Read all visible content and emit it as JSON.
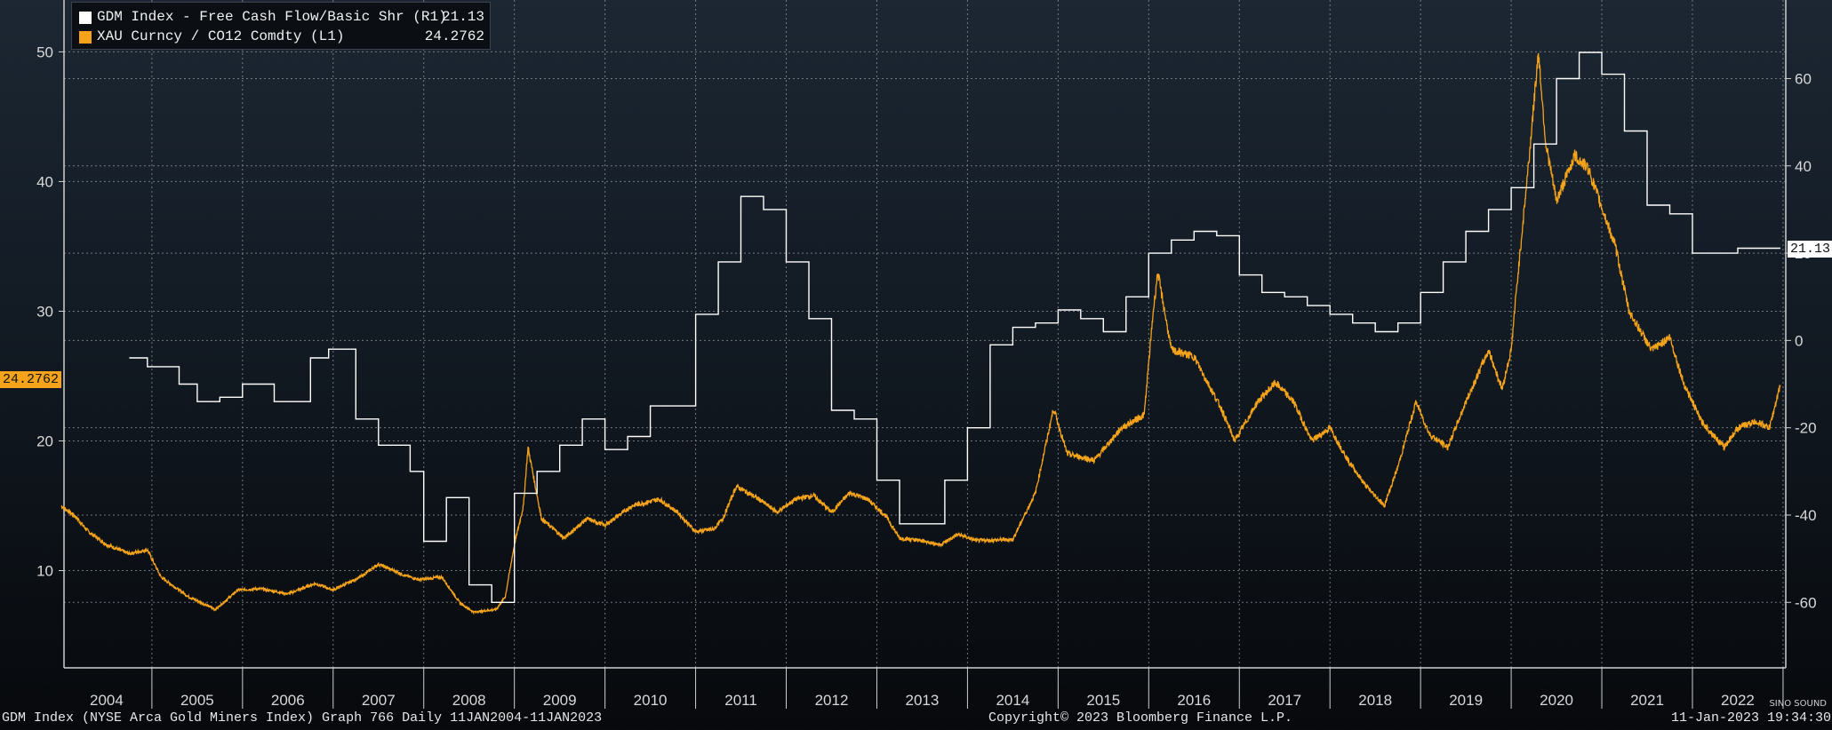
{
  "legend": {
    "items": [
      {
        "name": "GDM Index - Free Cash Flow/Basic Shr (R1)",
        "value": "21.13",
        "color": "#ffffff"
      },
      {
        "name": "XAU Curncy / CO12 Comdty (L1)",
        "value": "24.2762",
        "color": "#f5a31a"
      }
    ]
  },
  "value_tags": {
    "left": "24.2762",
    "right": "21.13"
  },
  "footer": {
    "left": "GDM Index (NYSE Arca Gold Miners Index) Graph 766  Daily 11JAN2004-11JAN2023",
    "center": "Copyright© 2023 Bloomberg Finance L.P.",
    "right": "11-Jan-2023 19:34:30"
  },
  "watermark": "SINO SOUND",
  "colors": {
    "gold_ratio": "#f5a31a",
    "fcf": "#ffffff",
    "grid": "#8a9096"
  },
  "chart_data": {
    "type": "line",
    "x_axis": {
      "categories": [
        "2004",
        "2005",
        "2006",
        "2007",
        "2008",
        "2009",
        "2010",
        "2011",
        "2012",
        "2013",
        "2014",
        "2015",
        "2016",
        "2017",
        "2018",
        "2019",
        "2020",
        "2021",
        "2022"
      ],
      "range": [
        "2004-01-11",
        "2023-01-11"
      ]
    },
    "left_axis": {
      "ticks": [
        10,
        20,
        30,
        40,
        50
      ],
      "range": [
        2.5,
        54
      ]
    },
    "right_axis": {
      "ticks": [
        -60,
        -40,
        -20,
        0,
        20,
        40,
        60
      ],
      "range": [
        -75,
        78
      ]
    },
    "grid": true,
    "legend_position": "top-left",
    "series": [
      {
        "name": "XAU Curncy / CO12 Comdty (L1)",
        "axis": "left",
        "style": "daily-noisy",
        "points": [
          [
            2004.0,
            15.0
          ],
          [
            2004.15,
            14.2
          ],
          [
            2004.3,
            13.0
          ],
          [
            2004.5,
            12.0
          ],
          [
            2004.75,
            11.3
          ],
          [
            2004.95,
            11.6
          ],
          [
            2005.1,
            9.5
          ],
          [
            2005.4,
            8.0
          ],
          [
            2005.7,
            7.0
          ],
          [
            2005.95,
            8.5
          ],
          [
            2006.2,
            8.6
          ],
          [
            2006.5,
            8.2
          ],
          [
            2006.8,
            9.0
          ],
          [
            2007.0,
            8.5
          ],
          [
            2007.3,
            9.5
          ],
          [
            2007.5,
            10.5
          ],
          [
            2007.8,
            9.6
          ],
          [
            2007.95,
            9.3
          ],
          [
            2008.2,
            9.5
          ],
          [
            2008.4,
            7.5
          ],
          [
            2008.55,
            6.8
          ],
          [
            2008.8,
            7.0
          ],
          [
            2008.9,
            8.0
          ],
          [
            2009.0,
            12.0
          ],
          [
            2009.1,
            15.0
          ],
          [
            2009.15,
            19.5
          ],
          [
            2009.3,
            14.0
          ],
          [
            2009.55,
            12.5
          ],
          [
            2009.8,
            14.0
          ],
          [
            2010.0,
            13.5
          ],
          [
            2010.3,
            15.0
          ],
          [
            2010.6,
            15.5
          ],
          [
            2010.8,
            14.5
          ],
          [
            2011.0,
            13.0
          ],
          [
            2011.2,
            13.2
          ],
          [
            2011.3,
            14.0
          ],
          [
            2011.45,
            16.5
          ],
          [
            2011.7,
            15.5
          ],
          [
            2011.9,
            14.5
          ],
          [
            2012.1,
            15.5
          ],
          [
            2012.3,
            15.8
          ],
          [
            2012.5,
            14.5
          ],
          [
            2012.7,
            16.0
          ],
          [
            2012.9,
            15.5
          ],
          [
            2013.1,
            14.2
          ],
          [
            2013.25,
            12.5
          ],
          [
            2013.5,
            12.3
          ],
          [
            2013.7,
            12.0
          ],
          [
            2013.9,
            12.8
          ],
          [
            2014.1,
            12.3
          ],
          [
            2014.5,
            12.4
          ],
          [
            2014.75,
            16.0
          ],
          [
            2014.95,
            22.5
          ],
          [
            2015.1,
            19.0
          ],
          [
            2015.4,
            18.5
          ],
          [
            2015.7,
            21.0
          ],
          [
            2015.95,
            22.0
          ],
          [
            2016.05,
            30.0
          ],
          [
            2016.1,
            33.0
          ],
          [
            2016.25,
            27.0
          ],
          [
            2016.5,
            26.5
          ],
          [
            2016.8,
            22.5
          ],
          [
            2016.95,
            20.0
          ],
          [
            2017.2,
            23.0
          ],
          [
            2017.4,
            24.5
          ],
          [
            2017.6,
            23.0
          ],
          [
            2017.8,
            20.0
          ],
          [
            2018.0,
            21.0
          ],
          [
            2018.2,
            18.5
          ],
          [
            2018.4,
            16.5
          ],
          [
            2018.6,
            15.0
          ],
          [
            2018.75,
            18.0
          ],
          [
            2018.95,
            23.0
          ],
          [
            2019.1,
            20.5
          ],
          [
            2019.3,
            19.5
          ],
          [
            2019.5,
            23.0
          ],
          [
            2019.75,
            27.0
          ],
          [
            2019.9,
            24.0
          ],
          [
            2020.0,
            27.0
          ],
          [
            2020.05,
            31.0
          ],
          [
            2020.2,
            42.0
          ],
          [
            2020.3,
            50.0
          ],
          [
            2020.38,
            43.0
          ],
          [
            2020.5,
            38.5
          ],
          [
            2020.7,
            42.0
          ],
          [
            2020.85,
            41.0
          ],
          [
            2021.0,
            38.0
          ],
          [
            2021.15,
            35.0
          ],
          [
            2021.3,
            30.0
          ],
          [
            2021.55,
            27.0
          ],
          [
            2021.75,
            28.0
          ],
          [
            2021.9,
            24.5
          ],
          [
            2022.1,
            21.5
          ],
          [
            2022.35,
            19.5
          ],
          [
            2022.5,
            21.0
          ],
          [
            2022.7,
            21.5
          ],
          [
            2022.85,
            21.0
          ],
          [
            2022.97,
            24.3
          ]
        ]
      },
      {
        "name": "GDM Index - Free Cash Flow/Basic Shr (R1)",
        "axis": "right",
        "style": "step",
        "points": [
          [
            2004.75,
            -4
          ],
          [
            2004.95,
            -6
          ],
          [
            2005.3,
            -10
          ],
          [
            2005.5,
            -14
          ],
          [
            2005.75,
            -13
          ],
          [
            2006.0,
            -10
          ],
          [
            2006.35,
            -14
          ],
          [
            2006.75,
            -4
          ],
          [
            2006.95,
            -2
          ],
          [
            2007.25,
            -18
          ],
          [
            2007.5,
            -24
          ],
          [
            2007.85,
            -30
          ],
          [
            2008.0,
            -46
          ],
          [
            2008.25,
            -36
          ],
          [
            2008.5,
            -56
          ],
          [
            2008.75,
            -60
          ],
          [
            2009.0,
            -35
          ],
          [
            2009.25,
            -30
          ],
          [
            2009.5,
            -24
          ],
          [
            2009.75,
            -18
          ],
          [
            2010.0,
            -25
          ],
          [
            2010.25,
            -22
          ],
          [
            2010.5,
            -15
          ],
          [
            2010.75,
            -15
          ],
          [
            2011.0,
            6
          ],
          [
            2011.25,
            18
          ],
          [
            2011.5,
            33
          ],
          [
            2011.75,
            30
          ],
          [
            2012.0,
            18
          ],
          [
            2012.25,
            5
          ],
          [
            2012.5,
            -16
          ],
          [
            2012.75,
            -18
          ],
          [
            2013.0,
            -32
          ],
          [
            2013.25,
            -42
          ],
          [
            2013.5,
            -42
          ],
          [
            2013.75,
            -32
          ],
          [
            2014.0,
            -20
          ],
          [
            2014.25,
            -1
          ],
          [
            2014.5,
            3
          ],
          [
            2014.75,
            4
          ],
          [
            2015.0,
            7
          ],
          [
            2015.25,
            5
          ],
          [
            2015.5,
            2
          ],
          [
            2015.75,
            10
          ],
          [
            2016.0,
            20
          ],
          [
            2016.25,
            23
          ],
          [
            2016.5,
            25
          ],
          [
            2016.75,
            24
          ],
          [
            2017.0,
            15
          ],
          [
            2017.25,
            11
          ],
          [
            2017.5,
            10
          ],
          [
            2017.75,
            8
          ],
          [
            2018.0,
            6
          ],
          [
            2018.25,
            4
          ],
          [
            2018.5,
            2
          ],
          [
            2018.75,
            4
          ],
          [
            2019.0,
            11
          ],
          [
            2019.25,
            18
          ],
          [
            2019.5,
            25
          ],
          [
            2019.75,
            30
          ],
          [
            2020.0,
            35
          ],
          [
            2020.25,
            45
          ],
          [
            2020.5,
            60
          ],
          [
            2020.75,
            66
          ],
          [
            2021.0,
            61
          ],
          [
            2021.25,
            48
          ],
          [
            2021.5,
            31
          ],
          [
            2021.75,
            29
          ],
          [
            2022.0,
            20
          ],
          [
            2022.25,
            20
          ],
          [
            2022.5,
            21.13
          ],
          [
            2022.97,
            21.13
          ]
        ]
      }
    ]
  }
}
